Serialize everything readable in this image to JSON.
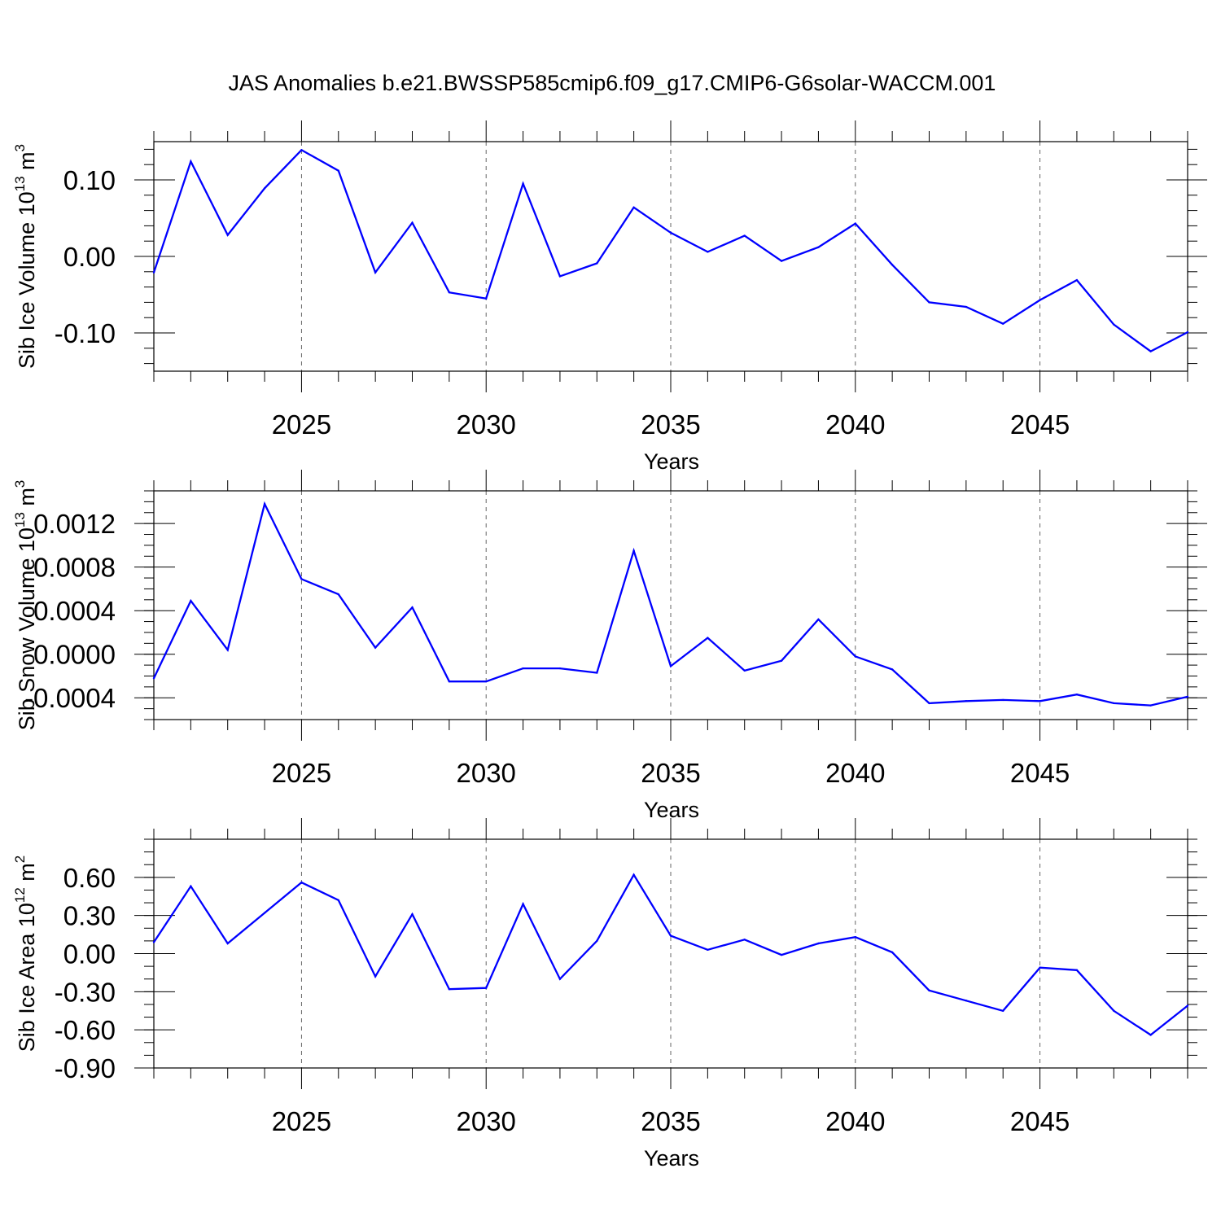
{
  "figure": {
    "title": "JAS Anomalies b.e21.BWSSP585cmip6.f09_g17.CMIP6-G6solar-WACCM.001"
  },
  "chart_data": [
    {
      "type": "line",
      "xlabel": "Years",
      "ylabel_main": "Sib Ice Volume 10",
      "ylabel_sup": "13",
      "ylabel_unit": " m",
      "ylabel_unit_sup": "3",
      "xlim": [
        2021,
        2049
      ],
      "ylim": [
        -0.15,
        0.15
      ],
      "yticks": [
        -0.1,
        0.0,
        0.1
      ],
      "ytick_labels": [
        "-0.10",
        "0.00",
        "0.10"
      ],
      "yminor_step": 0.02,
      "xticks": [
        2025,
        2030,
        2035,
        2040,
        2045
      ],
      "xtick_labels": [
        "2025",
        "2030",
        "2035",
        "2040",
        "2045"
      ],
      "grid": "vertical-dashed",
      "line_color": "#0000ff",
      "x": [
        2021,
        2022,
        2023,
        2024,
        2025,
        2026,
        2027,
        2028,
        2029,
        2030,
        2031,
        2032,
        2033,
        2034,
        2035,
        2036,
        2037,
        2038,
        2039,
        2040,
        2041,
        2042,
        2043,
        2044,
        2045,
        2046,
        2047,
        2048,
        2049
      ],
      "y": [
        -0.021,
        0.124,
        0.028,
        0.089,
        0.139,
        0.112,
        -0.021,
        0.044,
        -0.047,
        -0.055,
        0.095,
        -0.026,
        -0.009,
        0.064,
        0.031,
        0.006,
        0.027,
        -0.006,
        0.012,
        0.043,
        -0.011,
        -0.06,
        -0.066,
        -0.088,
        -0.057,
        -0.031,
        -0.089,
        -0.124,
        -0.099
      ]
    },
    {
      "type": "line",
      "xlabel": "Years",
      "ylabel_main": "Sib Snow Volume 10",
      "ylabel_sup": "13",
      "ylabel_unit": " m",
      "ylabel_unit_sup": "3",
      "xlim": [
        2021,
        2049
      ],
      "ylim": [
        -0.0006,
        0.0015
      ],
      "yticks": [
        -0.0004,
        0.0,
        0.0004,
        0.0008,
        0.0012
      ],
      "ytick_labels": [
        "-0.0004",
        "0.0000",
        "0.0004",
        "0.0008",
        "0.0012"
      ],
      "yminor_step": 0.0001,
      "xticks": [
        2025,
        2030,
        2035,
        2040,
        2045
      ],
      "xtick_labels": [
        "2025",
        "2030",
        "2035",
        "2040",
        "2045"
      ],
      "grid": "vertical-dashed",
      "line_color": "#0000ff",
      "x": [
        2021,
        2022,
        2023,
        2024,
        2025,
        2026,
        2027,
        2028,
        2029,
        2030,
        2031,
        2032,
        2033,
        2034,
        2035,
        2036,
        2037,
        2038,
        2039,
        2040,
        2041,
        2042,
        2043,
        2044,
        2045,
        2046,
        2047,
        2048,
        2049
      ],
      "y": [
        -0.00022,
        0.00049,
        4e-05,
        0.00138,
        0.00069,
        0.00055,
        6e-05,
        0.00043,
        -0.00025,
        -0.00025,
        -0.00013,
        -0.00013,
        -0.00017,
        0.00095,
        -0.00011,
        0.00015,
        -0.00015,
        -6e-05,
        0.00032,
        -2e-05,
        -0.00014,
        -0.00045,
        -0.00043,
        -0.00042,
        -0.00043,
        -0.00037,
        -0.00045,
        -0.00047,
        -0.00039
      ]
    },
    {
      "type": "line",
      "xlabel": "Years",
      "ylabel_main": "Sib Ice Area 10",
      "ylabel_sup": "12",
      "ylabel_unit": " m",
      "ylabel_unit_sup": "2",
      "xlim": [
        2021,
        2049
      ],
      "ylim": [
        -0.9,
        0.9
      ],
      "yticks": [
        -0.9,
        -0.6,
        -0.3,
        0.0,
        0.3,
        0.6
      ],
      "ytick_labels": [
        "-0.90",
        "-0.60",
        "-0.30",
        "0.00",
        "0.30",
        "0.60"
      ],
      "yminor_step": 0.1,
      "xticks": [
        2025,
        2030,
        2035,
        2040,
        2045
      ],
      "xtick_labels": [
        "2025",
        "2030",
        "2035",
        "2040",
        "2045"
      ],
      "grid": "vertical-dashed",
      "line_color": "#0000ff",
      "x": [
        2021,
        2022,
        2023,
        2024,
        2025,
        2026,
        2027,
        2028,
        2029,
        2030,
        2031,
        2032,
        2033,
        2034,
        2035,
        2036,
        2037,
        2038,
        2039,
        2040,
        2041,
        2042,
        2043,
        2044,
        2045,
        2046,
        2047,
        2048,
        2049
      ],
      "y": [
        0.09,
        0.53,
        0.08,
        0.32,
        0.56,
        0.42,
        -0.18,
        0.31,
        -0.28,
        -0.27,
        0.39,
        -0.2,
        0.1,
        0.62,
        0.14,
        0.03,
        0.11,
        -0.01,
        0.08,
        0.13,
        0.01,
        -0.29,
        -0.37,
        -0.45,
        -0.11,
        -0.13,
        -0.45,
        -0.64,
        -0.41
      ]
    }
  ]
}
